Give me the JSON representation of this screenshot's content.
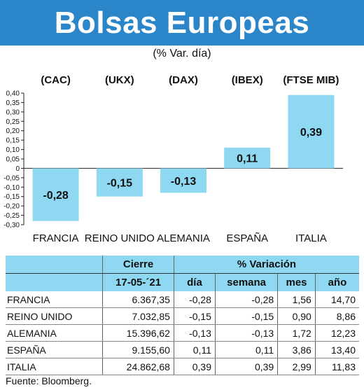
{
  "title": "Bolsas Europeas",
  "subtitle": "(% Var. día)",
  "chart_data": {
    "type": "bar",
    "indices": [
      "(CAC)",
      "(UKX)",
      "(DAX)",
      "(IBEX)",
      "(FTSE MIB)"
    ],
    "categories": [
      "FRANCIA",
      "REINO UNIDO",
      "ALEMANIA",
      "ESPAÑA",
      "ITALIA"
    ],
    "values": [
      -0.28,
      -0.15,
      -0.13,
      0.11,
      0.39
    ],
    "value_labels": [
      "-0,28",
      "-0,15",
      "-0,13",
      "0,11",
      "0,39"
    ],
    "ylim": [
      -0.3,
      0.4
    ],
    "yticks": [
      "0,40",
      "0,35",
      "0,30",
      "0,25",
      "0,20",
      "0,15",
      "0,10",
      "0,05",
      "0",
      "-0,05",
      "-0,10",
      "-0,15",
      "-0,20",
      "-0,25",
      "-0,30"
    ],
    "ytick_values": [
      0.4,
      0.35,
      0.3,
      0.25,
      0.2,
      0.15,
      0.1,
      0.05,
      0,
      -0.05,
      -0.1,
      -0.15,
      -0.2,
      -0.25,
      -0.3
    ],
    "bar_color": "#8fd8f2",
    "grid": false
  },
  "table": {
    "header_row1": [
      "",
      "Cierre",
      "% Variación"
    ],
    "header_row2": [
      "",
      "17-05-´21",
      "día",
      "semana",
      "mes",
      "año"
    ],
    "rows": [
      [
        "FRANCIA",
        "6.367,35",
        "-0,28",
        "-0,28",
        "1,56",
        "14,70"
      ],
      [
        "REINO UNIDO",
        "7.032,85",
        "-0,15",
        "-0,15",
        "0,90",
        "8,86"
      ],
      [
        "ALEMANIA",
        "15.396,62",
        "-0,13",
        "-0,13",
        "1,72",
        "12,23"
      ],
      [
        "ESPAÑA",
        "9.155,60",
        "0,11",
        "0,11",
        "3,86",
        "13,40"
      ],
      [
        "ITALIA",
        "24.862,68",
        "0,39",
        "0,39",
        "2,99",
        "11,83"
      ]
    ],
    "header_color": "#8fd8f2"
  },
  "source": "Fuente: Bloomberg.",
  "colors": {
    "title_bar": "#2a85c9",
    "bar": "#8fd8f2"
  }
}
